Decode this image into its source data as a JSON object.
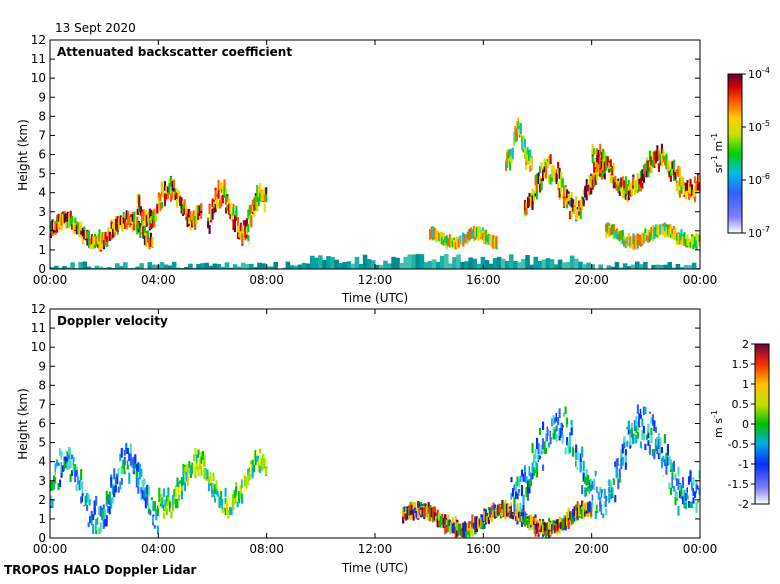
{
  "header": {
    "date": "13 Sept 2020"
  },
  "footer": {
    "instrument": "TROPOS HALO Doppler Lidar"
  },
  "chart_data": [
    {
      "type": "heatmap",
      "title": "Attenuated backscatter coefficient",
      "xlabel": "Time (UTC)",
      "ylabel": "Height (km)",
      "xlim": [
        0,
        24
      ],
      "ylim": [
        0,
        12
      ],
      "x_tick_labels": [
        "00:00",
        "04:00",
        "08:00",
        "12:00",
        "16:00",
        "20:00",
        "00:00"
      ],
      "y_tick_labels": [
        "0",
        "1",
        "2",
        "3",
        "4",
        "5",
        "6",
        "7",
        "8",
        "9",
        "10",
        "11",
        "12"
      ],
      "grid": false,
      "colorbar": {
        "label_html": "sr<sup>-1</sup> m<sup>-1</sup>",
        "unit_base": "sr",
        "unit_base_exp": "-1",
        "unit_second": "m",
        "unit_second_exp": "-1",
        "scale": "log",
        "range": [
          1e-07,
          0.0001
        ],
        "ticks": [
          {
            "base": "10",
            "exp": "-4",
            "value": 0.0001
          },
          {
            "base": "10",
            "exp": "-5",
            "value": 1e-05
          },
          {
            "base": "10",
            "exp": "-6",
            "value": 1e-06
          },
          {
            "base": "10",
            "exp": "-7",
            "value": 1e-07
          }
        ]
      },
      "features": [
        {
          "kind": "cloud",
          "t": [
            0,
            3.8
          ],
          "h": [
            0.9,
            2.6
          ],
          "level": "high"
        },
        {
          "kind": "cloud",
          "t": [
            3.2,
            5.6
          ],
          "h": [
            2.0,
            4.4
          ],
          "level": "high"
        },
        {
          "kind": "cloud",
          "t": [
            5.8,
            8.0
          ],
          "h": [
            1.2,
            4.2
          ],
          "level": "high"
        },
        {
          "kind": "aerosol",
          "t": [
            0,
            24
          ],
          "h": [
            0,
            0.4
          ],
          "level": "low"
        },
        {
          "kind": "cloud",
          "t": [
            14.0,
            16.5
          ],
          "h": [
            1.0,
            1.7
          ],
          "level": "mid"
        },
        {
          "kind": "cloud",
          "t": [
            16.8,
            17.8
          ],
          "h": [
            5.0,
            7.5
          ],
          "level": "mid"
        },
        {
          "kind": "cloud",
          "t": [
            17.5,
            20.5
          ],
          "h": [
            2.5,
            5.5
          ],
          "level": "high"
        },
        {
          "kind": "cloud",
          "t": [
            20.0,
            24.0
          ],
          "h": [
            3.5,
            6.0
          ],
          "level": "high"
        },
        {
          "kind": "cloud",
          "t": [
            20.5,
            24.0
          ],
          "h": [
            1.0,
            2.0
          ],
          "level": "mid"
        }
      ]
    },
    {
      "type": "heatmap",
      "title": "Doppler velocity",
      "xlabel": "Time (UTC)",
      "ylabel": "Height (km)",
      "xlim": [
        0,
        24
      ],
      "ylim": [
        0,
        12
      ],
      "x_tick_labels": [
        "00:00",
        "04:00",
        "08:00",
        "12:00",
        "16:00",
        "20:00",
        "00:00"
      ],
      "y_tick_labels": [
        "0",
        "1",
        "2",
        "3",
        "4",
        "5",
        "6",
        "7",
        "8",
        "9",
        "10",
        "11",
        "12"
      ],
      "grid": false,
      "colorbar": {
        "unit_base": "m",
        "unit_base_exp": "",
        "unit_second": "s",
        "unit_second_exp": "-1",
        "scale": "linear",
        "range": [
          -2,
          2
        ],
        "ticks": [
          "2",
          "1.5",
          "1",
          "0.5",
          "0",
          "-0.5",
          "-1",
          "-1.5",
          "-2"
        ]
      },
      "features": [
        {
          "kind": "cloud",
          "t": [
            0,
            4.0
          ],
          "h": [
            0.2,
            4.4
          ],
          "level": "low"
        },
        {
          "kind": "cloud",
          "t": [
            4.0,
            8.0
          ],
          "h": [
            1.0,
            4.2
          ],
          "level": "mid"
        },
        {
          "kind": "noise",
          "t": [
            13.0,
            20.0
          ],
          "h": [
            0,
            1.5
          ],
          "level": "mixed"
        },
        {
          "kind": "cloud",
          "t": [
            17.0,
            24.0
          ],
          "h": [
            1.0,
            6.5
          ],
          "level": "low"
        }
      ]
    }
  ]
}
